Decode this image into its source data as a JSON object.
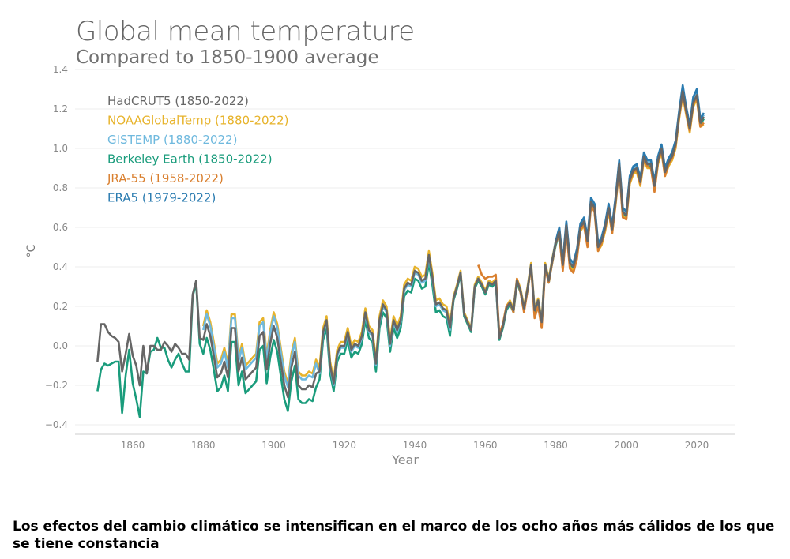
{
  "chart_data": {
    "type": "line",
    "title": "Global mean temperature",
    "subtitle": "Compared to 1850-1900 average",
    "xlabel": "Year",
    "ylabel": "°C",
    "xlim": [
      1842,
      2032
    ],
    "ylim": [
      -0.4,
      1.4
    ],
    "xticks": [
      1860,
      1880,
      1900,
      1920,
      1940,
      1960,
      1980,
      2000,
      2020
    ],
    "yticks": [
      -0.4,
      -0.2,
      0.0,
      0.2,
      0.4,
      0.6,
      0.8,
      1.0,
      1.2,
      1.4
    ],
    "ytick_labels": [
      "−0.4",
      "−0.2",
      "0.0",
      "0.2",
      "0.4",
      "0.6",
      "0.8",
      "1.0",
      "1.2",
      "1.4"
    ],
    "grid": true,
    "legend_position": "top-left",
    "series": [
      {
        "name": "Berkeley Earth (1850-2022)",
        "color": "#1a9c7c",
        "start": 1850,
        "values": [
          -0.23,
          -0.12,
          -0.09,
          -0.1,
          -0.09,
          -0.08,
          -0.08,
          -0.34,
          -0.15,
          -0.02,
          -0.19,
          -0.27,
          -0.36,
          -0.13,
          -0.14,
          -0.03,
          -0.02,
          0.04,
          -0.01,
          -0.01,
          -0.07,
          -0.11,
          -0.07,
          -0.04,
          -0.09,
          -0.13,
          -0.13,
          0.25,
          0.32,
          0.01,
          -0.04,
          0.04,
          -0.02,
          -0.12,
          -0.23,
          -0.21,
          -0.15,
          -0.23,
          0.02,
          0.02,
          -0.2,
          -0.13,
          -0.24,
          -0.22,
          -0.2,
          -0.18,
          -0.02,
          0.0,
          -0.19,
          -0.06,
          0.03,
          -0.03,
          -0.15,
          -0.27,
          -0.33,
          -0.18,
          -0.1,
          -0.27,
          -0.29,
          -0.29,
          -0.27,
          -0.28,
          -0.21,
          -0.17,
          0.03,
          0.09,
          -0.14,
          -0.23,
          -0.08,
          -0.04,
          -0.04,
          0.03,
          -0.06,
          -0.03,
          -0.04,
          0.01,
          0.13,
          0.04,
          0.02,
          -0.13,
          0.09,
          0.17,
          0.14,
          -0.03,
          0.09,
          0.04,
          0.09,
          0.25,
          0.28,
          0.27,
          0.34,
          0.33,
          0.29,
          0.3,
          0.42,
          0.31,
          0.17,
          0.18,
          0.15,
          0.14,
          0.05,
          0.23,
          0.29,
          0.36,
          0.15,
          0.11,
          0.07,
          0.29,
          0.33,
          0.3,
          0.26,
          0.31,
          0.3,
          0.32,
          0.03,
          0.09,
          0.18,
          0.21,
          0.17,
          0.32,
          0.27,
          0.18,
          0.28,
          0.4,
          0.17,
          0.22,
          0.11,
          0.4,
          0.32,
          0.42,
          0.51,
          0.57,
          0.4,
          0.6,
          0.41,
          0.39,
          0.46,
          0.59,
          0.62,
          0.52,
          0.72,
          0.69,
          0.49,
          0.52,
          0.59,
          0.69,
          0.58,
          0.73,
          0.91,
          0.67,
          0.65,
          0.83,
          0.88,
          0.89,
          0.82,
          0.95,
          0.91,
          0.91,
          0.8,
          0.93,
          0.99,
          0.87,
          0.92,
          0.95,
          1.01,
          1.16,
          1.28,
          1.18,
          1.09,
          1.22,
          1.26,
          1.12,
          1.15
        ]
      },
      {
        "name": "NOAAGlobalTemp (1880-2022)",
        "color": "#e7b32b",
        "start": 1880,
        "values": [
          0.1,
          0.18,
          0.12,
          0.02,
          -0.09,
          -0.07,
          -0.01,
          -0.09,
          0.16,
          0.16,
          -0.06,
          0.01,
          -0.1,
          -0.08,
          -0.06,
          -0.04,
          0.12,
          0.14,
          -0.05,
          0.08,
          0.17,
          0.11,
          -0.01,
          -0.13,
          -0.19,
          -0.04,
          0.04,
          -0.13,
          -0.15,
          -0.15,
          -0.13,
          -0.14,
          -0.07,
          -0.11,
          0.09,
          0.15,
          -0.08,
          -0.17,
          -0.02,
          0.02,
          0.02,
          0.09,
          0.0,
          0.03,
          0.02,
          0.07,
          0.19,
          0.1,
          0.08,
          -0.07,
          0.15,
          0.23,
          0.2,
          0.03,
          0.15,
          0.1,
          0.15,
          0.31,
          0.34,
          0.33,
          0.4,
          0.39,
          0.35,
          0.36,
          0.48,
          0.37,
          0.23,
          0.24,
          0.21,
          0.2,
          0.11,
          0.25,
          0.31,
          0.38,
          0.17,
          0.13,
          0.09,
          0.31,
          0.35,
          0.32,
          0.28,
          0.33,
          0.32,
          0.34,
          0.05,
          0.11,
          0.2,
          0.23,
          0.19,
          0.34,
          0.29,
          0.2,
          0.3,
          0.42,
          0.19,
          0.24,
          0.13,
          0.42,
          0.34,
          0.44,
          0.53,
          0.56,
          0.39,
          0.59,
          0.4,
          0.38,
          0.45,
          0.58,
          0.61,
          0.51,
          0.71,
          0.68,
          0.48,
          0.51,
          0.58,
          0.68,
          0.57,
          0.72,
          0.9,
          0.66,
          0.64,
          0.82,
          0.87,
          0.88,
          0.81,
          0.94,
          0.9,
          0.9,
          0.79,
          0.92,
          0.98,
          0.86,
          0.91,
          0.94,
          1.0,
          1.15,
          1.27,
          1.17,
          1.08,
          1.21,
          1.25,
          1.11,
          1.12
        ]
      },
      {
        "name": "GISTEMP (1880-2022)",
        "color": "#6fb9de",
        "start": 1880,
        "values": [
          0.08,
          0.16,
          0.1,
          0.0,
          -0.11,
          -0.09,
          -0.03,
          -0.11,
          0.14,
          0.14,
          -0.08,
          -0.01,
          -0.12,
          -0.1,
          -0.08,
          -0.06,
          0.1,
          0.12,
          -0.07,
          0.06,
          0.15,
          0.09,
          -0.03,
          -0.15,
          -0.21,
          -0.06,
          0.02,
          -0.15,
          -0.17,
          -0.17,
          -0.15,
          -0.16,
          -0.09,
          -0.14,
          0.06,
          0.12,
          -0.11,
          -0.2,
          -0.05,
          -0.01,
          -0.01,
          0.06,
          -0.03,
          0.0,
          -0.01,
          0.04,
          0.16,
          0.07,
          0.05,
          -0.1,
          0.12,
          0.2,
          0.17,
          0.0,
          0.12,
          0.07,
          0.12,
          0.28,
          0.31,
          0.3,
          0.37,
          0.36,
          0.32,
          0.33,
          0.45,
          0.34,
          0.2,
          0.21,
          0.18,
          0.17,
          0.08,
          0.24,
          0.3,
          0.37,
          0.16,
          0.12,
          0.08,
          0.3,
          0.34,
          0.31,
          0.27,
          0.32,
          0.31,
          0.33,
          0.04,
          0.1,
          0.19,
          0.22,
          0.18,
          0.33,
          0.28,
          0.19,
          0.29,
          0.41,
          0.18,
          0.23,
          0.12,
          0.41,
          0.33,
          0.43,
          0.52,
          0.59,
          0.42,
          0.62,
          0.43,
          0.41,
          0.48,
          0.61,
          0.64,
          0.54,
          0.74,
          0.71,
          0.51,
          0.54,
          0.61,
          0.71,
          0.6,
          0.75,
          0.93,
          0.69,
          0.67,
          0.85,
          0.9,
          0.91,
          0.84,
          0.97,
          0.93,
          0.93,
          0.82,
          0.95,
          1.01,
          0.89,
          0.94,
          0.97,
          1.03,
          1.18,
          1.3,
          1.2,
          1.11,
          1.24,
          1.29,
          1.14,
          1.17
        ]
      },
      {
        "name": "JRA-55 (1958-2022)",
        "color": "#d97f2e",
        "start": 1958,
        "values": [
          0.41,
          0.36,
          0.34,
          0.35,
          0.35,
          0.36,
          0.06,
          0.11,
          0.2,
          0.22,
          0.17,
          0.34,
          0.27,
          0.17,
          0.28,
          0.4,
          0.14,
          0.2,
          0.09,
          0.39,
          0.32,
          0.42,
          0.52,
          0.56,
          0.38,
          0.58,
          0.39,
          0.37,
          0.44,
          0.59,
          0.61,
          0.5,
          0.71,
          0.68,
          0.48,
          0.52,
          0.59,
          0.69,
          0.57,
          0.73,
          0.9,
          0.65,
          0.64,
          0.83,
          0.88,
          0.89,
          0.82,
          0.95,
          0.91,
          0.9,
          0.78,
          0.93,
          0.99,
          0.86,
          0.92,
          0.95,
          1.01,
          1.16,
          1.28,
          1.18,
          1.09,
          1.22,
          1.26,
          1.11,
          1.13
        ]
      },
      {
        "name": "ERA5 (1979-2022)",
        "color": "#2a7bb0",
        "start": 1979,
        "values": [
          0.43,
          0.53,
          0.6,
          0.43,
          0.63,
          0.44,
          0.42,
          0.49,
          0.62,
          0.65,
          0.55,
          0.75,
          0.72,
          0.52,
          0.55,
          0.62,
          0.72,
          0.61,
          0.76,
          0.94,
          0.7,
          0.68,
          0.86,
          0.91,
          0.92,
          0.85,
          0.98,
          0.94,
          0.94,
          0.83,
          0.96,
          1.02,
          0.9,
          0.95,
          0.98,
          1.04,
          1.19,
          1.32,
          1.21,
          1.12,
          1.26,
          1.3,
          1.15,
          1.18
        ]
      },
      {
        "name": "HadCRUT5 (1850-2022)",
        "color": "#666666",
        "start": 1850,
        "values": [
          -0.08,
          0.11,
          0.11,
          0.07,
          0.05,
          0.04,
          0.02,
          -0.13,
          -0.04,
          0.06,
          -0.05,
          -0.1,
          -0.2,
          0.0,
          -0.14,
          0.0,
          0.0,
          -0.02,
          -0.02,
          0.02,
          0.0,
          -0.03,
          0.01,
          -0.01,
          -0.04,
          -0.04,
          -0.07,
          0.26,
          0.33,
          0.04,
          0.03,
          0.11,
          0.05,
          -0.05,
          -0.16,
          -0.14,
          -0.08,
          -0.16,
          0.09,
          0.09,
          -0.13,
          -0.06,
          -0.17,
          -0.15,
          -0.13,
          -0.11,
          0.05,
          0.07,
          -0.12,
          0.01,
          0.1,
          0.04,
          -0.08,
          -0.2,
          -0.26,
          -0.11,
          -0.03,
          -0.2,
          -0.22,
          -0.22,
          -0.2,
          -0.21,
          -0.14,
          -0.13,
          0.07,
          0.13,
          -0.1,
          -0.19,
          -0.04,
          0.0,
          0.0,
          0.07,
          -0.02,
          0.01,
          0.0,
          0.05,
          0.17,
          0.08,
          0.06,
          -0.09,
          0.13,
          0.21,
          0.18,
          0.01,
          0.13,
          0.08,
          0.13,
          0.29,
          0.32,
          0.31,
          0.38,
          0.37,
          0.33,
          0.34,
          0.46,
          0.35,
          0.21,
          0.22,
          0.19,
          0.18,
          0.09,
          0.24,
          0.3,
          0.37,
          0.16,
          0.12,
          0.08,
          0.3,
          0.34,
          0.31,
          0.27,
          0.32,
          0.31,
          0.33,
          0.04,
          0.1,
          0.19,
          0.22,
          0.18,
          0.33,
          0.28,
          0.19,
          0.29,
          0.41,
          0.18,
          0.23,
          0.12,
          0.41,
          0.33,
          0.43,
          0.52,
          0.58,
          0.41,
          0.61,
          0.42,
          0.4,
          0.47,
          0.6,
          0.63,
          0.53,
          0.73,
          0.7,
          0.5,
          0.53,
          0.6,
          0.7,
          0.59,
          0.74,
          0.92,
          0.68,
          0.66,
          0.84,
          0.89,
          0.9,
          0.83,
          0.96,
          0.92,
          0.92,
          0.81,
          0.94,
          1.0,
          0.88,
          0.93,
          0.96,
          1.02,
          1.17,
          1.29,
          1.19,
          1.1,
          1.23,
          1.27,
          1.13,
          1.16
        ]
      }
    ],
    "legend_order": [
      "HadCRUT5 (1850-2022)",
      "NOAAGlobalTemp (1880-2022)",
      "GISTEMP (1880-2022)",
      "Berkeley Earth (1850-2022)",
      "JRA-55 (1958-2022)",
      "ERA5 (1979-2022)"
    ]
  },
  "caption": "Los efectos del cambio climático se intensifican en el marco de los ocho años más cálidos de los que se tiene constancia"
}
